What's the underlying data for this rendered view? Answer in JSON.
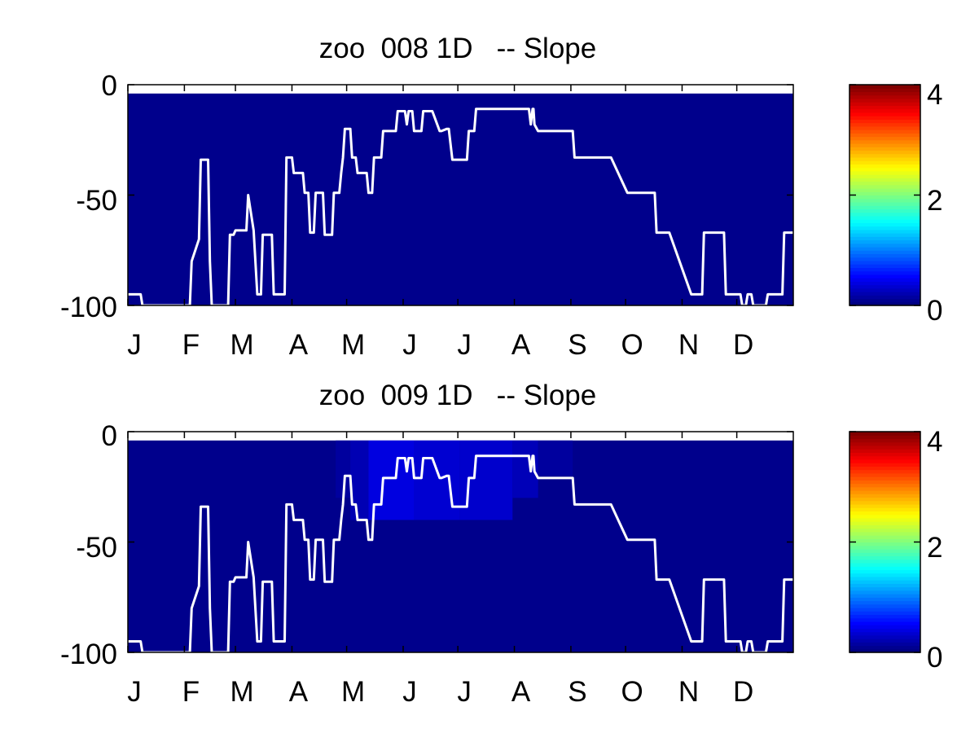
{
  "figure": {
    "background": "#ffffff",
    "colormap": "jet"
  },
  "chart_data": [
    {
      "type": "heatmap",
      "title": "zoo  008 1D   -- Slope",
      "xlabel": "",
      "ylabel": "",
      "x_tick_labels": [
        "J",
        "F",
        "M",
        "A",
        "M",
        "J",
        "J",
        "A",
        "S",
        "O",
        "N",
        "D"
      ],
      "x_tick_months": [
        1,
        2,
        3,
        4,
        5,
        6,
        7,
        8,
        9,
        10,
        11,
        12
      ],
      "xlim": [
        1,
        366
      ],
      "y_tick_labels": [
        "0",
        "-50",
        "-100"
      ],
      "y_ticks": [
        0,
        -50,
        -100
      ],
      "ylim": [
        -100,
        0
      ],
      "grid": false,
      "field_value": 0.05,
      "field_top": -4,
      "patches": [],
      "colorbar": {
        "clim": [
          0,
          4
        ],
        "tick_labels": [
          "4",
          "2",
          "0"
        ],
        "ticks": [
          4,
          2,
          0
        ]
      },
      "line": {
        "name": "",
        "color": "#ffffff",
        "x": [
          1,
          8,
          9,
          35,
          36,
          40,
          41,
          45,
          46,
          47,
          48,
          56,
          57,
          59,
          60,
          66,
          67,
          70,
          72,
          74,
          75,
          80,
          81,
          87,
          88,
          91,
          92,
          97,
          98,
          100,
          101,
          103,
          104,
          105,
          106,
          108,
          109,
          113,
          114,
          117,
          118,
          119,
          120,
          123,
          124,
          126,
          127,
          132,
          133,
          135,
          136,
          140,
          141,
          148,
          149,
          150,
          151,
          152,
          153,
          154,
          155,
          157,
          158,
          162,
          163,
          166,
          168,
          172,
          173,
          176,
          177,
          179,
          180,
          187,
          188,
          191,
          192,
          220,
          221,
          222,
          223,
          223.5,
          224,
          226,
          227,
          240,
          241,
          245,
          246,
          265,
          266,
          275,
          276,
          290,
          291,
          297,
          298,
          310,
          311,
          316,
          317,
          328,
          329,
          337,
          338,
          340,
          341,
          343,
          344,
          351,
          352,
          356,
          357,
          360,
          361,
          364,
          365,
          366
        ],
        "y": [
          -95,
          -95,
          -100,
          -100,
          -80,
          -70,
          -34,
          -34,
          -80,
          -100,
          -100,
          -100,
          -68,
          -68,
          -66,
          -66,
          -50,
          -66,
          -95,
          -95,
          -68,
          -68,
          -95,
          -95,
          -33,
          -33,
          -40,
          -40,
          -49,
          -49,
          -67,
          -67,
          -49,
          -49,
          -49,
          -49,
          -68,
          -68,
          -49,
          -49,
          -40,
          -33,
          -20,
          -20,
          -33,
          -33,
          -40,
          -40,
          -49,
          -49,
          -33,
          -33,
          -21,
          -21,
          -12,
          -12,
          -12,
          -12,
          -12,
          -18,
          -12,
          -12,
          -21,
          -21,
          -12,
          -12,
          -12,
          -21,
          -21,
          -20,
          -20,
          -34,
          -34,
          -34,
          -21,
          -21,
          -11,
          -11,
          -11,
          -18,
          -11,
          -11,
          -18,
          -21,
          -21,
          -21,
          -21,
          -21,
          -33,
          -33,
          -33,
          -49,
          -49,
          -49,
          -67,
          -67,
          -67,
          -95,
          -95,
          -95,
          -67,
          -67,
          -95,
          -95,
          -100,
          -100,
          -95,
          -95,
          -100,
          -100,
          -95,
          -95,
          -95,
          -95,
          -67,
          -67,
          -67,
          -67
        ]
      }
    },
    {
      "type": "heatmap",
      "title": "zoo  009 1D   -- Slope",
      "xlabel": "",
      "ylabel": "",
      "x_tick_labels": [
        "J",
        "F",
        "M",
        "A",
        "M",
        "J",
        "J",
        "A",
        "S",
        "O",
        "N",
        "D"
      ],
      "x_tick_months": [
        1,
        2,
        3,
        4,
        5,
        6,
        7,
        8,
        9,
        10,
        11,
        12
      ],
      "xlim": [
        1,
        366
      ],
      "y_tick_labels": [
        "0",
        "-50",
        "-100"
      ],
      "y_ticks": [
        0,
        -50,
        -100
      ],
      "ylim": [
        -100,
        0
      ],
      "grid": false,
      "field_value": 0.05,
      "field_top": -4,
      "patches": [
        {
          "x0": 115,
          "x1": 123,
          "y0": -4,
          "y1": -30,
          "value": 0.12
        },
        {
          "x0": 123,
          "x1": 133,
          "y0": -4,
          "y1": -40,
          "value": 0.2
        },
        {
          "x0": 133,
          "x1": 158,
          "y0": -4,
          "y1": -40,
          "value": 0.38
        },
        {
          "x0": 158,
          "x1": 183,
          "y0": -4,
          "y1": -40,
          "value": 0.32
        },
        {
          "x0": 183,
          "x1": 212,
          "y0": -4,
          "y1": -40,
          "value": 0.3
        },
        {
          "x0": 212,
          "x1": 226,
          "y0": -4,
          "y1": -30,
          "value": 0.22
        },
        {
          "x0": 226,
          "x1": 245,
          "y0": -4,
          "y1": -20,
          "value": 0.12
        }
      ],
      "colorbar": {
        "clim": [
          0,
          4
        ],
        "tick_labels": [
          "4",
          "2",
          "0"
        ],
        "ticks": [
          4,
          2,
          0
        ]
      },
      "line": {
        "name": "",
        "color": "#ffffff",
        "x": [
          1,
          8,
          9,
          35,
          36,
          40,
          41,
          45,
          46,
          47,
          48,
          56,
          57,
          59,
          60,
          66,
          67,
          70,
          72,
          74,
          75,
          80,
          81,
          87,
          88,
          91,
          92,
          97,
          98,
          100,
          101,
          103,
          104,
          105,
          106,
          108,
          109,
          113,
          114,
          117,
          118,
          119,
          120,
          123,
          124,
          126,
          127,
          132,
          133,
          135,
          136,
          140,
          141,
          148,
          149,
          150,
          151,
          152,
          153,
          154,
          155,
          157,
          158,
          162,
          163,
          166,
          168,
          172,
          173,
          176,
          177,
          179,
          180,
          187,
          188,
          191,
          192,
          220,
          221,
          222,
          223,
          223.5,
          224,
          226,
          227,
          240,
          241,
          245,
          246,
          265,
          266,
          275,
          276,
          290,
          291,
          297,
          298,
          310,
          311,
          316,
          317,
          328,
          329,
          337,
          338,
          340,
          341,
          343,
          344,
          351,
          352,
          356,
          357,
          360,
          361,
          364,
          365,
          366
        ],
        "y": [
          -95,
          -95,
          -100,
          -100,
          -80,
          -70,
          -34,
          -34,
          -80,
          -100,
          -100,
          -100,
          -68,
          -68,
          -66,
          -66,
          -50,
          -66,
          -95,
          -95,
          -68,
          -68,
          -95,
          -95,
          -33,
          -33,
          -40,
          -40,
          -49,
          -49,
          -67,
          -67,
          -49,
          -49,
          -49,
          -49,
          -68,
          -68,
          -49,
          -49,
          -40,
          -33,
          -20,
          -20,
          -33,
          -33,
          -40,
          -40,
          -49,
          -49,
          -33,
          -33,
          -21,
          -21,
          -12,
          -12,
          -12,
          -12,
          -12,
          -18,
          -12,
          -12,
          -21,
          -21,
          -12,
          -12,
          -12,
          -21,
          -21,
          -20,
          -20,
          -34,
          -34,
          -34,
          -21,
          -21,
          -11,
          -11,
          -11,
          -18,
          -11,
          -11,
          -18,
          -21,
          -21,
          -21,
          -21,
          -21,
          -33,
          -33,
          -33,
          -49,
          -49,
          -49,
          -67,
          -67,
          -67,
          -95,
          -95,
          -95,
          -67,
          -67,
          -95,
          -95,
          -100,
          -100,
          -95,
          -95,
          -100,
          -100,
          -95,
          -95,
          -95,
          -95,
          -67,
          -67,
          -67,
          -67
        ]
      }
    }
  ]
}
